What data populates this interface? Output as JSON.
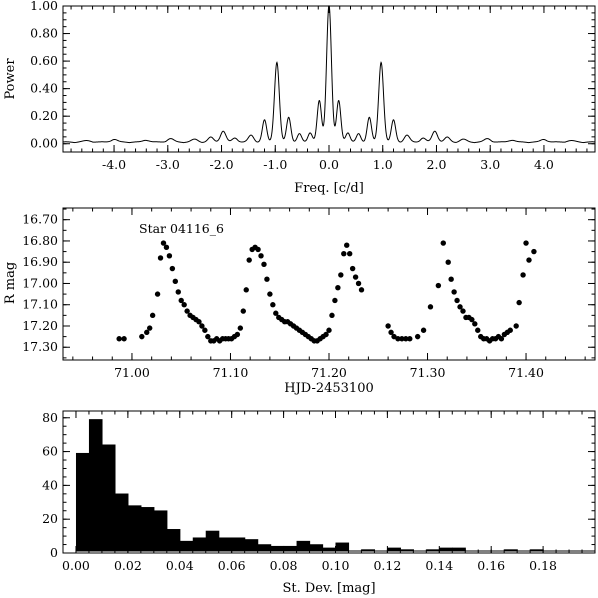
{
  "chart_data": [
    {
      "type": "line",
      "title": "",
      "xlabel": "Freq. [c/d]",
      "ylabel": "Power",
      "xlim": [
        -4.95,
        4.95
      ],
      "ylim": [
        -0.06,
        1.0
      ],
      "xticks": [
        -4.0,
        -3.0,
        -2.0,
        -1.0,
        0.0,
        1.0,
        2.0,
        3.0,
        4.0
      ],
      "xtick_labels": [
        "-4.0",
        "-3.0",
        "-2.0",
        "-1.0",
        "0.0",
        "1.0",
        "2.0",
        "3.0",
        "4.0"
      ],
      "yticks": [
        0.0,
        0.2,
        0.4,
        0.6,
        0.8,
        1.0
      ],
      "ytick_labels": [
        "0.00",
        "0.20",
        "0.40",
        "0.60",
        "0.80",
        "1.00"
      ],
      "peaks": [
        {
          "x": 0.0,
          "y": 1.0,
          "w": 0.045
        },
        {
          "x": -0.97,
          "y": 0.58,
          "w": 0.045
        },
        {
          "x": 0.97,
          "y": 0.58,
          "w": 0.045
        },
        {
          "x": -0.18,
          "y": 0.3,
          "w": 0.04
        },
        {
          "x": 0.18,
          "y": 0.3,
          "w": 0.04
        },
        {
          "x": -0.75,
          "y": 0.18,
          "w": 0.04
        },
        {
          "x": 0.75,
          "y": 0.18,
          "w": 0.04
        },
        {
          "x": -1.2,
          "y": 0.16,
          "w": 0.04
        },
        {
          "x": 1.2,
          "y": 0.16,
          "w": 0.04
        },
        {
          "x": -0.35,
          "y": 0.07,
          "w": 0.04
        },
        {
          "x": 0.35,
          "y": 0.07,
          "w": 0.04
        },
        {
          "x": -0.55,
          "y": 0.06,
          "w": 0.04
        },
        {
          "x": 0.55,
          "y": 0.06,
          "w": 0.04
        },
        {
          "x": -1.45,
          "y": 0.05,
          "w": 0.05
        },
        {
          "x": 1.45,
          "y": 0.05,
          "w": 0.05
        },
        {
          "x": -1.97,
          "y": 0.08,
          "w": 0.05
        },
        {
          "x": 1.97,
          "y": 0.08,
          "w": 0.05
        },
        {
          "x": -1.75,
          "y": 0.03,
          "w": 0.05
        },
        {
          "x": 1.75,
          "y": 0.03,
          "w": 0.05
        },
        {
          "x": -2.2,
          "y": 0.035,
          "w": 0.05
        },
        {
          "x": 2.2,
          "y": 0.035,
          "w": 0.05
        },
        {
          "x": -2.5,
          "y": 0.02,
          "w": 0.06
        },
        {
          "x": 2.5,
          "y": 0.02,
          "w": 0.06
        },
        {
          "x": -2.95,
          "y": 0.025,
          "w": 0.06
        },
        {
          "x": 2.95,
          "y": 0.025,
          "w": 0.06
        },
        {
          "x": -3.4,
          "y": 0.015,
          "w": 0.06
        },
        {
          "x": 3.4,
          "y": 0.015,
          "w": 0.06
        },
        {
          "x": -4.0,
          "y": 0.02,
          "w": 0.06
        },
        {
          "x": 4.0,
          "y": 0.02,
          "w": 0.06
        },
        {
          "x": -4.5,
          "y": 0.01,
          "w": 0.08
        },
        {
          "x": 4.5,
          "y": 0.01,
          "w": 0.08
        }
      ]
    },
    {
      "type": "scatter",
      "title": "",
      "annotation": "Star 04116_6",
      "xlabel": "HJD-2453100",
      "ylabel": "R mag",
      "y_inverted": true,
      "xlim": [
        70.93,
        71.47
      ],
      "ylim": [
        16.645,
        17.36
      ],
      "xticks": [
        71.0,
        71.1,
        71.2,
        71.3,
        71.4
      ],
      "xtick_labels": [
        "71.00",
        "71.10",
        "71.20",
        "71.30",
        "71.40"
      ],
      "yticks": [
        16.7,
        16.8,
        16.9,
        17.0,
        17.1,
        17.2,
        17.3
      ],
      "ytick_labels": [
        "16.70",
        "16.80",
        "16.90",
        "17.00",
        "17.10",
        "17.20",
        "17.30"
      ],
      "points": [
        [
          70.987,
          17.26
        ],
        [
          70.992,
          17.26
        ],
        [
          71.01,
          17.25
        ],
        [
          71.015,
          17.23
        ],
        [
          71.018,
          17.21
        ],
        [
          71.021,
          17.15
        ],
        [
          71.026,
          17.05
        ],
        [
          71.029,
          16.88
        ],
        [
          71.032,
          16.81
        ],
        [
          71.035,
          16.83
        ],
        [
          71.038,
          16.87
        ],
        [
          71.041,
          16.93
        ],
        [
          71.044,
          16.99
        ],
        [
          71.047,
          17.04
        ],
        [
          71.05,
          17.08
        ],
        [
          71.053,
          17.1
        ],
        [
          71.056,
          17.13
        ],
        [
          71.059,
          17.15
        ],
        [
          71.062,
          17.16
        ],
        [
          71.065,
          17.17
        ],
        [
          71.068,
          17.18
        ],
        [
          71.071,
          17.2
        ],
        [
          71.074,
          17.22
        ],
        [
          71.077,
          17.25
        ],
        [
          71.08,
          17.27
        ],
        [
          71.083,
          17.27
        ],
        [
          71.086,
          17.26
        ],
        [
          71.089,
          17.27
        ],
        [
          71.092,
          17.26
        ],
        [
          71.095,
          17.26
        ],
        [
          71.098,
          17.26
        ],
        [
          71.101,
          17.26
        ],
        [
          71.104,
          17.25
        ],
        [
          71.107,
          17.24
        ],
        [
          71.11,
          17.21
        ],
        [
          71.113,
          17.13
        ],
        [
          71.116,
          17.03
        ],
        [
          71.119,
          16.89
        ],
        [
          71.122,
          16.84
        ],
        [
          71.125,
          16.83
        ],
        [
          71.128,
          16.84
        ],
        [
          71.131,
          16.87
        ],
        [
          71.134,
          16.91
        ],
        [
          71.137,
          16.98
        ],
        [
          71.14,
          17.05
        ],
        [
          71.143,
          17.1
        ],
        [
          71.146,
          17.14
        ],
        [
          71.149,
          17.16
        ],
        [
          71.152,
          17.17
        ],
        [
          71.155,
          17.18
        ],
        [
          71.158,
          17.18
        ],
        [
          71.161,
          17.19
        ],
        [
          71.164,
          17.2
        ],
        [
          71.167,
          17.21
        ],
        [
          71.17,
          17.22
        ],
        [
          71.173,
          17.23
        ],
        [
          71.176,
          17.24
        ],
        [
          71.179,
          17.25
        ],
        [
          71.182,
          17.26
        ],
        [
          71.185,
          17.27
        ],
        [
          71.188,
          17.27
        ],
        [
          71.191,
          17.26
        ],
        [
          71.194,
          17.25
        ],
        [
          71.197,
          17.24
        ],
        [
          71.2,
          17.22
        ],
        [
          71.203,
          17.15
        ],
        [
          71.206,
          17.08
        ],
        [
          71.209,
          17.02
        ],
        [
          71.212,
          16.96
        ],
        [
          71.215,
          16.86
        ],
        [
          71.218,
          16.82
        ],
        [
          71.221,
          16.86
        ],
        [
          71.224,
          16.93
        ],
        [
          71.227,
          16.97
        ],
        [
          71.23,
          17.0
        ],
        [
          71.233,
          17.03
        ],
        [
          71.26,
          17.2
        ],
        [
          71.263,
          17.23
        ],
        [
          71.266,
          17.25
        ],
        [
          71.27,
          17.26
        ],
        [
          71.274,
          17.26
        ],
        [
          71.278,
          17.26
        ],
        [
          71.282,
          17.26
        ],
        [
          71.29,
          17.25
        ],
        [
          71.296,
          17.22
        ],
        [
          71.303,
          17.11
        ],
        [
          71.311,
          17.01
        ],
        [
          71.316,
          16.81
        ],
        [
          71.321,
          16.9
        ],
        [
          71.324,
          16.98
        ],
        [
          71.327,
          17.04
        ],
        [
          71.33,
          17.08
        ],
        [
          71.333,
          17.11
        ],
        [
          71.336,
          17.13
        ],
        [
          71.339,
          17.16
        ],
        [
          71.342,
          17.16
        ],
        [
          71.345,
          17.17
        ],
        [
          71.348,
          17.19
        ],
        [
          71.351,
          17.22
        ],
        [
          71.354,
          17.25
        ],
        [
          71.357,
          17.26
        ],
        [
          71.36,
          17.26
        ],
        [
          71.363,
          17.27
        ],
        [
          71.366,
          17.26
        ],
        [
          71.369,
          17.26
        ],
        [
          71.372,
          17.25
        ],
        [
          71.375,
          17.26
        ],
        [
          71.378,
          17.24
        ],
        [
          71.381,
          17.23
        ],
        [
          71.384,
          17.22
        ],
        [
          71.39,
          17.2
        ],
        [
          71.393,
          17.09
        ],
        [
          71.397,
          16.96
        ],
        [
          71.4,
          16.81
        ],
        [
          71.403,
          16.89
        ],
        [
          71.408,
          16.85
        ]
      ]
    },
    {
      "type": "bar",
      "title": "",
      "xlabel": "St. Dev. [mag]",
      "ylabel": "",
      "xlim": [
        -0.005,
        0.2
      ],
      "ylim": [
        0,
        84
      ],
      "bin_width": 0.005,
      "xticks": [
        0.0,
        0.02,
        0.04,
        0.06,
        0.08,
        0.1,
        0.12,
        0.14,
        0.16,
        0.18
      ],
      "xtick_labels": [
        "0.00",
        "0.02",
        "0.04",
        "0.06",
        "0.08",
        "0.10",
        "0.12",
        "0.14",
        "0.16",
        "0.18"
      ],
      "yticks": [
        0,
        20,
        40,
        60,
        80
      ],
      "ytick_labels": [
        "0",
        "20",
        "40",
        "60",
        "80"
      ],
      "bins": [
        {
          "x": 0.0,
          "count": 58
        },
        {
          "x": 0.005,
          "count": 78
        },
        {
          "x": 0.01,
          "count": 63
        },
        {
          "x": 0.015,
          "count": 34
        },
        {
          "x": 0.02,
          "count": 27
        },
        {
          "x": 0.025,
          "count": 26
        },
        {
          "x": 0.03,
          "count": 24
        },
        {
          "x": 0.035,
          "count": 13
        },
        {
          "x": 0.04,
          "count": 6
        },
        {
          "x": 0.045,
          "count": 8
        },
        {
          "x": 0.05,
          "count": 12
        },
        {
          "x": 0.055,
          "count": 8
        },
        {
          "x": 0.06,
          "count": 8
        },
        {
          "x": 0.065,
          "count": 7
        },
        {
          "x": 0.07,
          "count": 4
        },
        {
          "x": 0.075,
          "count": 3
        },
        {
          "x": 0.08,
          "count": 3
        },
        {
          "x": 0.085,
          "count": 6
        },
        {
          "x": 0.09,
          "count": 4
        },
        {
          "x": 0.095,
          "count": 2
        },
        {
          "x": 0.1,
          "count": 5
        },
        {
          "x": 0.11,
          "count": 1
        },
        {
          "x": 0.12,
          "count": 2
        },
        {
          "x": 0.125,
          "count": 1
        },
        {
          "x": 0.135,
          "count": 1
        },
        {
          "x": 0.14,
          "count": 2
        },
        {
          "x": 0.145,
          "count": 2
        },
        {
          "x": 0.165,
          "count": 1
        },
        {
          "x": 0.175,
          "count": 1
        }
      ]
    }
  ]
}
